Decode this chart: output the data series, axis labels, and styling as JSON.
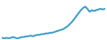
{
  "line_color": "#3d9dc8",
  "background_color": "#ffffff",
  "values": [
    98,
    97,
    98,
    97,
    98,
    99,
    98,
    97,
    98,
    99,
    99,
    100,
    100,
    101,
    100,
    101,
    102,
    102,
    103,
    103,
    104,
    104,
    105,
    105,
    106,
    107,
    108,
    109,
    110,
    112,
    114,
    117,
    120,
    124,
    128,
    132,
    136,
    139,
    141,
    138,
    134,
    136,
    135,
    136,
    137,
    138,
    137,
    138
  ],
  "linewidth": 1.4
}
